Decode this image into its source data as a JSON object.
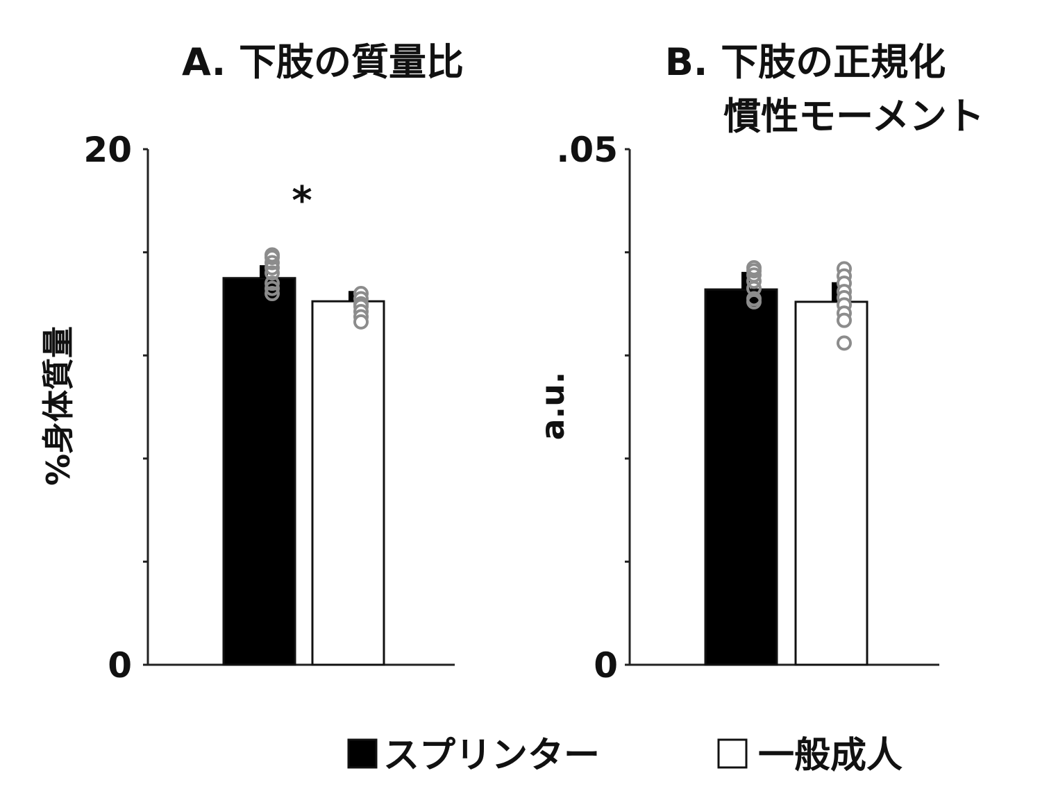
{
  "chart_data": [
    {
      "type": "bar",
      "title": "A. 下肢の質量比",
      "ylabel": "%身体質量",
      "ylim": [
        0,
        20
      ],
      "yticks": [
        0,
        4,
        8,
        12,
        16,
        20
      ],
      "ytick_labels": {
        "0": "0",
        "20": "20"
      },
      "series": [
        {
          "name": "スプリンター",
          "color": "#000000",
          "value": 15.0,
          "sd": 0.5,
          "points": [
            15.2,
            15.4,
            15.6,
            15.8,
            15.9,
            14.8,
            14.6,
            14.4
          ]
        },
        {
          "name": "一般成人",
          "color": "#ffffff",
          "value": 14.1,
          "sd": 0.4,
          "points": [
            14.4,
            14.2,
            14.0,
            13.9,
            13.7,
            13.5,
            13.3
          ]
        }
      ],
      "significance": "*"
    },
    {
      "type": "bar",
      "title": "B. 下肢の正規化\n慣性モーメント",
      "ylabel": "a.u.",
      "ylim": [
        0,
        0.05
      ],
      "yticks": [
        0,
        0.01,
        0.02,
        0.03,
        0.04,
        0.05
      ],
      "ytick_labels": {
        "0": "0",
        "0.05": ".05"
      },
      "series": [
        {
          "name": "スプリンター",
          "color": "#000000",
          "value": 0.0364,
          "sd": 0.0017,
          "points": [
            0.0385,
            0.0382,
            0.0378,
            0.0372,
            0.0365,
            0.0355,
            0.0352
          ]
        },
        {
          "name": "一般成人",
          "color": "#ffffff",
          "value": 0.0352,
          "sd": 0.0019,
          "points": [
            0.0384,
            0.0377,
            0.037,
            0.0362,
            0.0356,
            0.0349,
            0.0341,
            0.0334,
            0.0312
          ]
        }
      ]
    }
  ],
  "legend": {
    "items": [
      {
        "symbol": "■",
        "label": "スプリンター",
        "fill": "#000000"
      },
      {
        "symbol": "□",
        "label": "一般成人",
        "fill": "#ffffff"
      }
    ]
  }
}
